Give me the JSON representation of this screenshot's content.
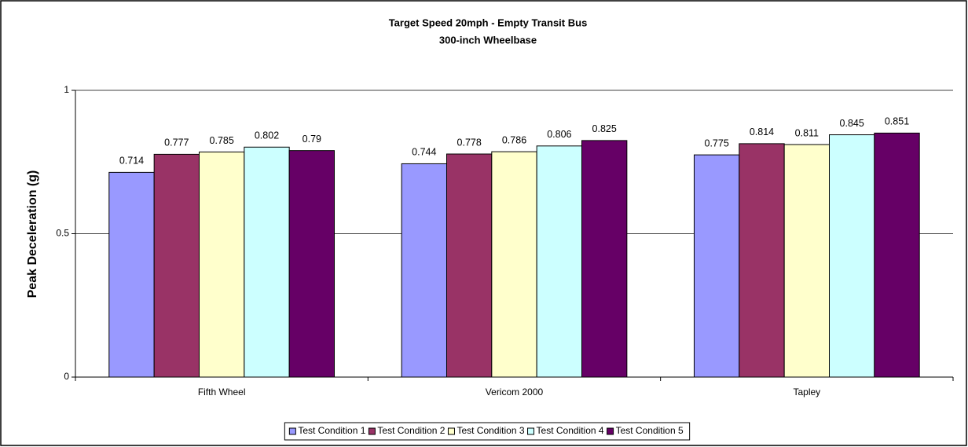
{
  "chart_data": {
    "type": "bar",
    "title": "Target Speed 20mph - Empty Transit Bus",
    "subtitle": "300-inch Wheelbase",
    "y_label": "Peak Deceleration (g)",
    "categories": [
      "Fifth Wheel",
      "Vericom 2000",
      "Tapley"
    ],
    "series": [
      {
        "name": "Test Condition 1",
        "color": "#9999ff",
        "values": [
          0.714,
          0.744,
          0.775
        ]
      },
      {
        "name": "Test Condition 2",
        "color": "#993366",
        "values": [
          0.777,
          0.778,
          0.814
        ]
      },
      {
        "name": "Test Condition 3",
        "color": "#ffffcc",
        "values": [
          0.785,
          0.786,
          0.811
        ]
      },
      {
        "name": "Test Condition 4",
        "color": "#ccffff",
        "values": [
          0.802,
          0.806,
          0.845
        ]
      },
      {
        "name": "Test Condition 5",
        "color": "#660066",
        "values": [
          0.79,
          0.825,
          0.851
        ]
      }
    ],
    "ylim": [
      0,
      1
    ],
    "yticks": [
      0,
      0.5,
      1
    ],
    "grid": true,
    "legend": "bottom"
  }
}
